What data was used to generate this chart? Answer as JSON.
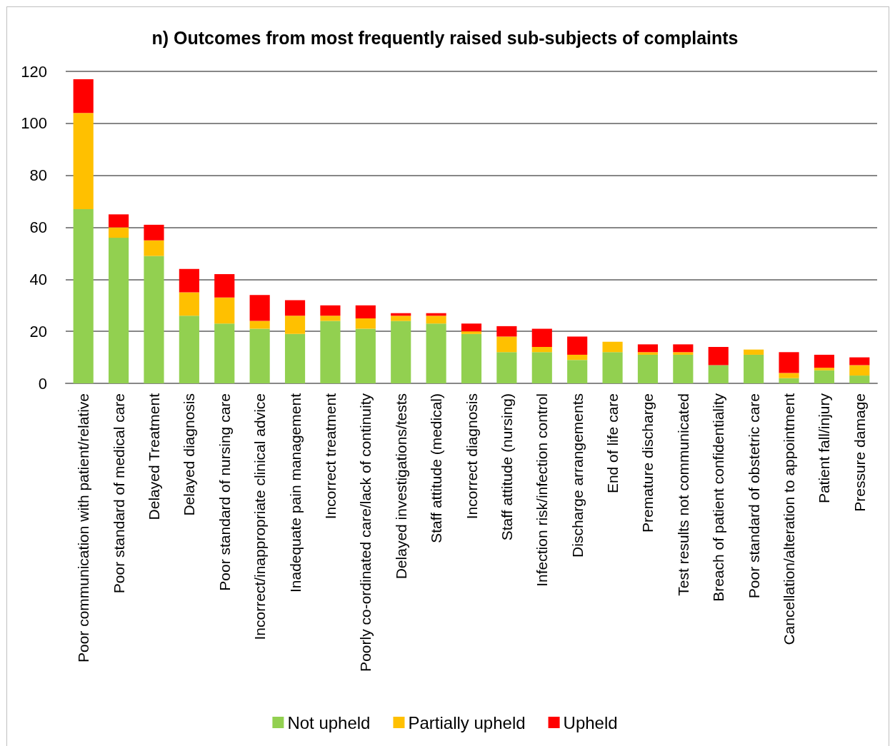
{
  "chart_data": {
    "type": "bar",
    "title": "n) Outcomes from most frequently raised sub-subjects of complaints",
    "categories": [
      "Poor communication with patient/relative",
      "Poor standard of medical care",
      "Delayed Treatment",
      "Delayed diagnosis",
      "Poor standard of nursing care",
      "Incorrect/inappropriate clinical advice",
      "Inadequate pain management",
      "Incorrect treatment",
      "Poorly co-ordinated care/lack of continuity",
      "Delayed investigations/tests",
      "Staff attitude (medical)",
      "Incorrect diagnosis",
      "Staff attitude (nursing)",
      "Infection risk/infection control",
      "Discharge arrangements",
      "End of life care",
      "Premature discharge",
      "Test results not communicated",
      "Breach of patient confidentiality",
      "Poor standard of obstetric care",
      "Cancellation/alteration to appointment",
      "Patient fall/injury",
      "Pressure damage"
    ],
    "series": [
      {
        "name": "Not upheld",
        "color": "#92d050",
        "values": [
          67,
          56,
          49,
          26,
          23,
          21,
          19,
          24,
          21,
          24,
          23,
          19,
          12,
          12,
          9,
          12,
          11,
          11,
          7,
          11,
          2,
          5,
          3
        ]
      },
      {
        "name": "Partially upheld",
        "color": "#ffc000",
        "values": [
          37,
          4,
          6,
          9,
          10,
          3,
          7,
          2,
          4,
          2,
          3,
          1,
          6,
          2,
          2,
          4,
          1,
          1,
          0,
          2,
          2,
          1,
          4
        ]
      },
      {
        "name": "Upheld",
        "color": "#ff0000",
        "values": [
          13,
          5,
          6,
          9,
          9,
          10,
          6,
          4,
          5,
          1,
          1,
          3,
          4,
          7,
          7,
          0,
          3,
          3,
          7,
          0,
          8,
          5,
          3
        ]
      }
    ],
    "stacked": true,
    "ylim": [
      0,
      120
    ],
    "yticks": [
      0,
      20,
      40,
      60,
      80,
      100,
      120
    ],
    "grid": "y",
    "legend": "bottom"
  }
}
